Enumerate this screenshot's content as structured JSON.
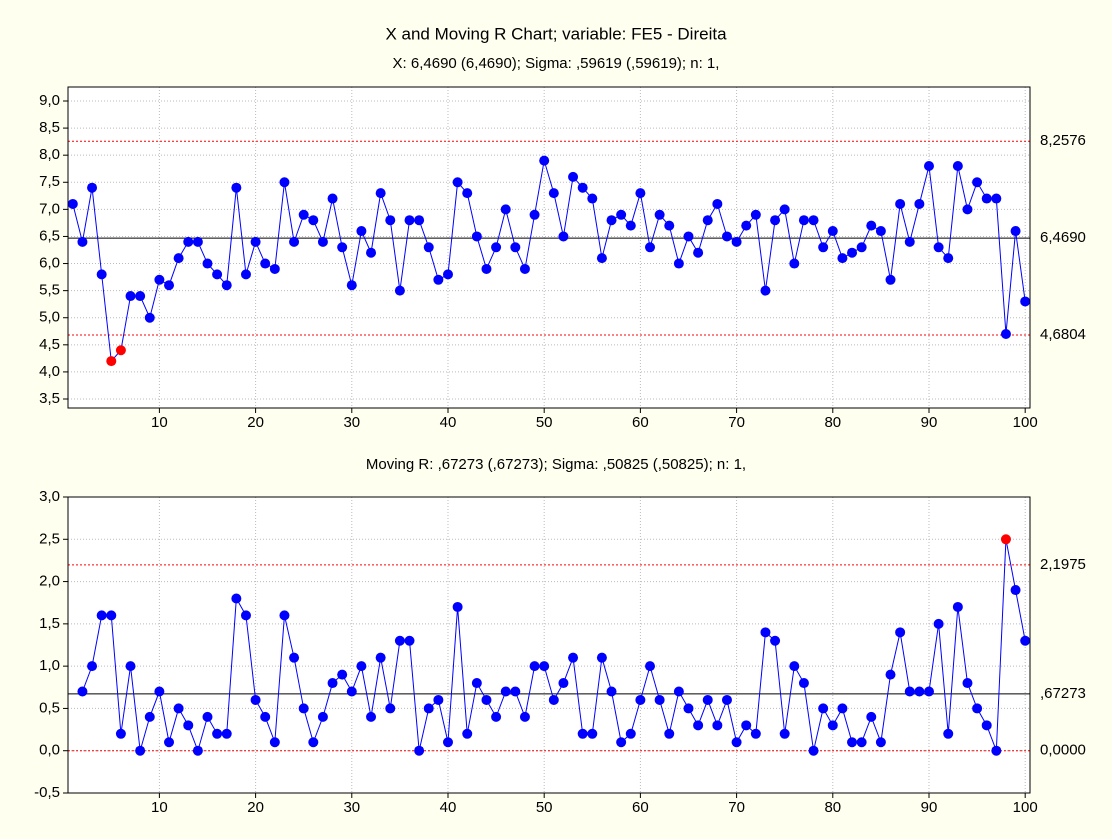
{
  "chart_data": [
    {
      "type": "line",
      "title": "X and Moving R Chart; variable:  FE5 - Direita",
      "subtitle": "X: 6,4690 (6,4690); Sigma: ,59619 (,59619); n: 1,",
      "x": [
        1,
        2,
        3,
        4,
        5,
        6,
        7,
        8,
        9,
        10,
        11,
        12,
        13,
        14,
        15,
        16,
        17,
        18,
        19,
        20,
        21,
        22,
        23,
        24,
        25,
        26,
        27,
        28,
        29,
        30,
        31,
        32,
        33,
        34,
        35,
        36,
        37,
        38,
        39,
        40,
        41,
        42,
        43,
        44,
        45,
        46,
        47,
        48,
        49,
        50,
        51,
        52,
        53,
        54,
        55,
        56,
        57,
        58,
        59,
        60,
        61,
        62,
        63,
        64,
        65,
        66,
        67,
        68,
        69,
        70,
        71,
        72,
        73,
        74,
        75,
        76,
        77,
        78,
        79,
        80,
        81,
        82,
        83,
        84,
        85,
        86,
        87,
        88,
        89,
        90,
        91,
        92,
        93,
        94,
        95,
        96,
        97,
        98,
        99,
        100
      ],
      "series": [
        {
          "color": "#0000ff",
          "values": [
            7.1,
            6.4,
            7.4,
            5.8,
            4.2,
            4.4,
            5.4,
            5.4,
            5.0,
            5.7,
            5.6,
            6.1,
            6.4,
            6.4,
            6.0,
            5.8,
            5.6,
            7.4,
            5.8,
            6.4,
            6.0,
            5.9,
            7.5,
            6.4,
            6.9,
            6.8,
            6.4,
            7.2,
            6.3,
            5.6,
            6.6,
            6.2,
            7.3,
            6.8,
            5.5,
            6.8,
            6.8,
            6.3,
            5.7,
            5.8,
            7.5,
            7.3,
            6.5,
            5.9,
            6.3,
            7.0,
            6.3,
            5.9,
            6.9,
            7.9,
            7.3,
            6.5,
            7.6,
            7.4,
            7.2,
            6.1,
            6.8,
            6.9,
            6.7,
            7.3,
            6.3,
            6.9,
            6.7,
            6.0,
            6.5,
            6.2,
            6.8,
            7.1,
            6.5,
            6.4,
            6.7,
            6.9,
            5.5,
            6.8,
            7.0,
            6.0,
            6.8,
            6.8,
            6.3,
            6.6,
            6.1,
            6.2,
            6.3,
            6.7,
            6.6,
            5.7,
            7.1,
            6.4,
            7.1,
            7.8,
            6.3,
            6.1,
            7.8,
            7.0,
            7.5,
            7.2,
            7.2,
            4.7,
            6.6,
            5.3
          ]
        }
      ],
      "out_of_control_color": "#ff0000",
      "center_line": {
        "value": 6.469,
        "label": "6,4690",
        "color": "#000000"
      },
      "control_limits": [
        {
          "value": 8.2576,
          "label": "8,2576"
        },
        {
          "value": 4.6804,
          "label": "4,6804"
        }
      ],
      "limit_color": "#ff0000",
      "xlim": [
        0.5,
        100.5
      ],
      "xticks": [
        10,
        20,
        30,
        40,
        50,
        60,
        70,
        80,
        90,
        100
      ],
      "ylim": [
        3.5,
        9.0
      ],
      "yticks": [
        {
          "value": 3.5,
          "label": "3,5"
        },
        {
          "value": 4.0,
          "label": "4,0"
        },
        {
          "value": 4.5,
          "label": "4,5"
        },
        {
          "value": 5.0,
          "label": "5,0"
        },
        {
          "value": 5.5,
          "label": "5,5"
        },
        {
          "value": 6.0,
          "label": "6,0"
        },
        {
          "value": 6.5,
          "label": "6,5"
        },
        {
          "value": 7.0,
          "label": "7,0"
        },
        {
          "value": 7.5,
          "label": "7,5"
        },
        {
          "value": 8.0,
          "label": "8,0"
        },
        {
          "value": 8.5,
          "label": "8,5"
        },
        {
          "value": 9.0,
          "label": "9,0"
        }
      ],
      "grid": true
    },
    {
      "type": "line",
      "title": "Moving R: ,67273 (,67273); Sigma: ,50825 (,50825); n: 1,",
      "x": [
        2,
        3,
        4,
        5,
        6,
        7,
        8,
        9,
        10,
        11,
        12,
        13,
        14,
        15,
        16,
        17,
        18,
        19,
        20,
        21,
        22,
        23,
        24,
        25,
        26,
        27,
        28,
        29,
        30,
        31,
        32,
        33,
        34,
        35,
        36,
        37,
        38,
        39,
        40,
        41,
        42,
        43,
        44,
        45,
        46,
        47,
        48,
        49,
        50,
        51,
        52,
        53,
        54,
        55,
        56,
        57,
        58,
        59,
        60,
        61,
        62,
        63,
        64,
        65,
        66,
        67,
        68,
        69,
        70,
        71,
        72,
        73,
        74,
        75,
        76,
        77,
        78,
        79,
        80,
        81,
        82,
        83,
        84,
        85,
        86,
        87,
        88,
        89,
        90,
        91,
        92,
        93,
        94,
        95,
        96,
        97,
        98,
        99,
        100
      ],
      "series": [
        {
          "color": "#0000ff",
          "values": [
            0.7,
            1.0,
            1.6,
            1.6,
            0.2,
            1.0,
            0.0,
            0.4,
            0.7,
            0.1,
            0.5,
            0.3,
            0.0,
            0.4,
            0.2,
            0.2,
            1.8,
            1.6,
            0.6,
            0.4,
            0.1,
            1.6,
            1.1,
            0.5,
            0.1,
            0.4,
            0.8,
            0.9,
            0.7,
            1.0,
            0.4,
            1.1,
            0.5,
            1.3,
            1.3,
            0.0,
            0.5,
            0.6,
            0.1,
            1.7,
            0.2,
            0.8,
            0.6,
            0.4,
            0.7,
            0.7,
            0.4,
            1.0,
            1.0,
            0.6,
            0.8,
            1.1,
            0.2,
            0.2,
            1.1,
            0.7,
            0.1,
            0.2,
            0.6,
            1.0,
            0.6,
            0.2,
            0.7,
            0.5,
            0.3,
            0.6,
            0.3,
            0.6,
            0.1,
            0.3,
            0.2,
            1.4,
            1.3,
            0.2,
            1.0,
            0.8,
            0.0,
            0.5,
            0.3,
            0.5,
            0.1,
            0.1,
            0.4,
            0.1,
            0.9,
            1.4,
            0.7,
            0.7,
            0.7,
            1.5,
            0.2,
            1.7,
            0.8,
            0.5,
            0.3,
            0.0,
            2.5,
            1.9,
            1.3
          ]
        }
      ],
      "out_of_control_color": "#ff0000",
      "center_line": {
        "value": 0.67273,
        "label": ",67273",
        "color": "#000000"
      },
      "control_limits": [
        {
          "value": 2.1975,
          "label": "2,1975"
        },
        {
          "value": 0,
          "label": "0,0000"
        }
      ],
      "limit_color": "#ff0000",
      "xlim": [
        0.5,
        100.5
      ],
      "xticks": [
        10,
        20,
        30,
        40,
        50,
        60,
        70,
        80,
        90,
        100
      ],
      "ylim": [
        -0.5,
        3.0
      ],
      "yticks": [
        {
          "value": -0.5,
          "label": "-0,5"
        },
        {
          "value": 0.0,
          "label": "0,0"
        },
        {
          "value": 0.5,
          "label": "0,5"
        },
        {
          "value": 1.0,
          "label": "1,0"
        },
        {
          "value": 1.5,
          "label": "1,5"
        },
        {
          "value": 2.0,
          "label": "2,0"
        },
        {
          "value": 2.5,
          "label": "2,5"
        },
        {
          "value": 3.0,
          "label": "3,0"
        }
      ],
      "grid": true
    }
  ]
}
